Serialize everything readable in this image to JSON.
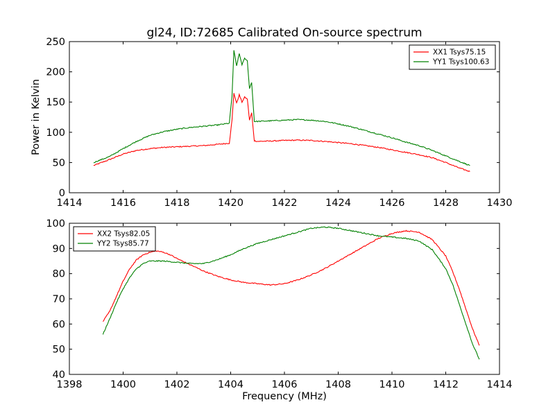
{
  "chart_data": [
    {
      "type": "line",
      "title": "gl24, ID:72685 Calibrated On-source spectrum",
      "xlabel": "",
      "ylabel": "Power in Kelvin",
      "xlim": [
        1414,
        1430
      ],
      "ylim": [
        0,
        250
      ],
      "xticks": [
        "1414",
        "1416",
        "1418",
        "1420",
        "1422",
        "1424",
        "1426",
        "1428",
        "1430"
      ],
      "yticks": [
        "0",
        "50",
        "100",
        "150",
        "200",
        "250"
      ],
      "legend_position": "top-right",
      "series": [
        {
          "name": "XX1 Tsys75.15",
          "color": "#ff0000",
          "points": [
            [
              1414.9,
              45
            ],
            [
              1415.5,
              55
            ],
            [
              1416.0,
              64
            ],
            [
              1416.5,
              70
            ],
            [
              1417.0,
              73
            ],
            [
              1417.5,
              75
            ],
            [
              1418.0,
              76
            ],
            [
              1418.5,
              77
            ],
            [
              1419.0,
              78
            ],
            [
              1419.5,
              80
            ],
            [
              1419.95,
              82
            ],
            [
              1420.05,
              120
            ],
            [
              1420.12,
              165
            ],
            [
              1420.22,
              148
            ],
            [
              1420.32,
              162
            ],
            [
              1420.42,
              150
            ],
            [
              1420.52,
              158
            ],
            [
              1420.62,
              155
            ],
            [
              1420.7,
              120
            ],
            [
              1420.78,
              132
            ],
            [
              1420.88,
              86
            ],
            [
              1421.0,
              85
            ],
            [
              1421.5,
              85.5
            ],
            [
              1422.0,
              86.5
            ],
            [
              1422.5,
              87
            ],
            [
              1423.0,
              86.5
            ],
            [
              1423.5,
              85
            ],
            [
              1424.0,
              83
            ],
            [
              1424.5,
              81
            ],
            [
              1425.0,
              78
            ],
            [
              1425.5,
              75
            ],
            [
              1426.0,
              71
            ],
            [
              1426.5,
              67
            ],
            [
              1427.0,
              63
            ],
            [
              1427.5,
              58
            ],
            [
              1428.0,
              50
            ],
            [
              1428.5,
              41
            ],
            [
              1428.9,
              35
            ]
          ]
        },
        {
          "name": "YY1 Tsys100.63",
          "color": "#008000",
          "points": [
            [
              1414.9,
              50
            ],
            [
              1415.5,
              60
            ],
            [
              1416.0,
              73
            ],
            [
              1416.5,
              85
            ],
            [
              1417.0,
              95
            ],
            [
              1417.5,
              101
            ],
            [
              1418.0,
              105
            ],
            [
              1418.5,
              108
            ],
            [
              1419.0,
              110
            ],
            [
              1419.5,
              112
            ],
            [
              1419.95,
              115
            ],
            [
              1420.05,
              160
            ],
            [
              1420.12,
              235
            ],
            [
              1420.22,
              210
            ],
            [
              1420.32,
              230
            ],
            [
              1420.42,
              212
            ],
            [
              1420.52,
              222
            ],
            [
              1420.62,
              218
            ],
            [
              1420.7,
              172
            ],
            [
              1420.78,
              183
            ],
            [
              1420.88,
              118
            ],
            [
              1421.0,
              118
            ],
            [
              1421.5,
              119
            ],
            [
              1422.0,
              120
            ],
            [
              1422.5,
              121
            ],
            [
              1423.0,
              120
            ],
            [
              1423.5,
              118
            ],
            [
              1424.0,
              114
            ],
            [
              1424.5,
              109
            ],
            [
              1425.0,
              103
            ],
            [
              1425.5,
              97
            ],
            [
              1426.0,
              91
            ],
            [
              1426.5,
              84
            ],
            [
              1427.0,
              78
            ],
            [
              1427.5,
              70
            ],
            [
              1428.0,
              61
            ],
            [
              1428.5,
              52
            ],
            [
              1428.9,
              45
            ]
          ]
        }
      ]
    },
    {
      "type": "line",
      "title": "",
      "xlabel": "Frequency (MHz)",
      "ylabel": "",
      "xlim": [
        1398,
        1414
      ],
      "ylim": [
        40,
        100
      ],
      "xticks": [
        "1398",
        "1400",
        "1402",
        "1404",
        "1406",
        "1408",
        "1410",
        "1412",
        "1414"
      ],
      "yticks": [
        "40",
        "50",
        "60",
        "70",
        "80",
        "90",
        "100"
      ],
      "legend_position": "top-left",
      "series": [
        {
          "name": "XX2 Tsys82.05",
          "color": "#ff0000",
          "points": [
            [
              1399.25,
              61
            ],
            [
              1399.5,
              65
            ],
            [
              1399.75,
              71
            ],
            [
              1400.0,
              77
            ],
            [
              1400.25,
              82
            ],
            [
              1400.5,
              85.5
            ],
            [
              1400.75,
              87.5
            ],
            [
              1401.0,
              88.5
            ],
            [
              1401.25,
              89
            ],
            [
              1401.5,
              88.5
            ],
            [
              1401.75,
              87.5
            ],
            [
              1402.0,
              86
            ],
            [
              1402.5,
              83.5
            ],
            [
              1403.0,
              81
            ],
            [
              1403.5,
              79
            ],
            [
              1404.0,
              77.5
            ],
            [
              1404.5,
              76.5
            ],
            [
              1405.0,
              76
            ],
            [
              1405.5,
              75.5
            ],
            [
              1406.0,
              76
            ],
            [
              1406.5,
              77.5
            ],
            [
              1407.0,
              79.5
            ],
            [
              1407.5,
              82
            ],
            [
              1408.0,
              85
            ],
            [
              1408.5,
              88
            ],
            [
              1409.0,
              91
            ],
            [
              1409.5,
              94
            ],
            [
              1410.0,
              96
            ],
            [
              1410.5,
              97
            ],
            [
              1411.0,
              96.5
            ],
            [
              1411.5,
              93.5
            ],
            [
              1412.0,
              87
            ],
            [
              1412.25,
              81
            ],
            [
              1412.5,
              74
            ],
            [
              1412.75,
              66
            ],
            [
              1413.0,
              58
            ],
            [
              1413.25,
              51.5
            ]
          ]
        },
        {
          "name": "YY2 Tsys85.77",
          "color": "#008000",
          "points": [
            [
              1399.25,
              56
            ],
            [
              1399.5,
              62
            ],
            [
              1399.75,
              68.5
            ],
            [
              1400.0,
              74
            ],
            [
              1400.25,
              78.5
            ],
            [
              1400.5,
              82
            ],
            [
              1400.75,
              84
            ],
            [
              1401.0,
              85
            ],
            [
              1401.5,
              85
            ],
            [
              1402.0,
              84.5
            ],
            [
              1402.5,
              84
            ],
            [
              1403.0,
              84
            ],
            [
              1403.5,
              85.5
            ],
            [
              1404.0,
              87.5
            ],
            [
              1404.5,
              90
            ],
            [
              1405.0,
              92
            ],
            [
              1405.5,
              93.5
            ],
            [
              1406.0,
              95
            ],
            [
              1406.5,
              96.5
            ],
            [
              1407.0,
              98
            ],
            [
              1407.5,
              98.5
            ],
            [
              1408.0,
              98
            ],
            [
              1408.5,
              97
            ],
            [
              1409.0,
              96
            ],
            [
              1409.5,
              95
            ],
            [
              1410.0,
              94.5
            ],
            [
              1410.5,
              94
            ],
            [
              1411.0,
              93
            ],
            [
              1411.5,
              89.5
            ],
            [
              1412.0,
              82
            ],
            [
              1412.25,
              76
            ],
            [
              1412.5,
              68
            ],
            [
              1412.75,
              60
            ],
            [
              1413.0,
              52
            ],
            [
              1413.25,
              46
            ]
          ]
        }
      ]
    }
  ]
}
